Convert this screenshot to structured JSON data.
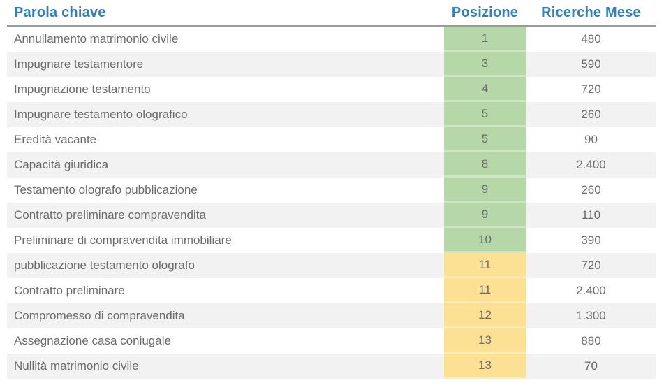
{
  "table": {
    "columns": {
      "keyword": {
        "label": "Parola chiave"
      },
      "position": {
        "label": "Posizione"
      },
      "searches": {
        "label": "Ricerche Mese"
      }
    },
    "rows": [
      {
        "keyword": "Annullamento matrimonio civile",
        "position": "1",
        "searches": "480",
        "band": "green"
      },
      {
        "keyword": "Impugnare testamentore",
        "position": "3",
        "searches": "590",
        "band": "green"
      },
      {
        "keyword": "Impugnazione testamento",
        "position": "4",
        "searches": "720",
        "band": "green"
      },
      {
        "keyword": "Impugnare testamento olografico",
        "position": "5",
        "searches": "260",
        "band": "green"
      },
      {
        "keyword": "Eredità vacante",
        "position": "5",
        "searches": "90",
        "band": "green"
      },
      {
        "keyword": "Capacità giuridica",
        "position": "8",
        "searches": "2.400",
        "band": "green"
      },
      {
        "keyword": "Testamento olografo pubblicazione",
        "position": "9",
        "searches": "260",
        "band": "green"
      },
      {
        "keyword": "Contratto preliminare compravendita",
        "position": "9",
        "searches": "110",
        "band": "green"
      },
      {
        "keyword": "Preliminare di compravendita immobiliare",
        "position": "10",
        "searches": "390",
        "band": "green"
      },
      {
        "keyword": "pubblicazione testamento olografo",
        "position": "11",
        "searches": "720",
        "band": "yellow"
      },
      {
        "keyword": "Contratto preliminare",
        "position": "11",
        "searches": "2.400",
        "band": "yellow"
      },
      {
        "keyword": "Compromesso di compravendita",
        "position": "12",
        "searches": "1.300",
        "band": "yellow"
      },
      {
        "keyword": "Assegnazione casa coniugale",
        "position": "13",
        "searches": "880",
        "band": "yellow"
      },
      {
        "keyword": "Nullità matrimonio civile",
        "position": "13",
        "searches": "70",
        "band": "yellow"
      }
    ],
    "colors": {
      "header_text_blue": "#2e80c4",
      "header_border_gray": "#9b9b9b",
      "row_stripe_gray": "#f2f2f2",
      "body_text_gray": "#6b6b6b",
      "position_good_green": "#b6d7a8",
      "position_warn_yellow": "#fce094"
    }
  }
}
